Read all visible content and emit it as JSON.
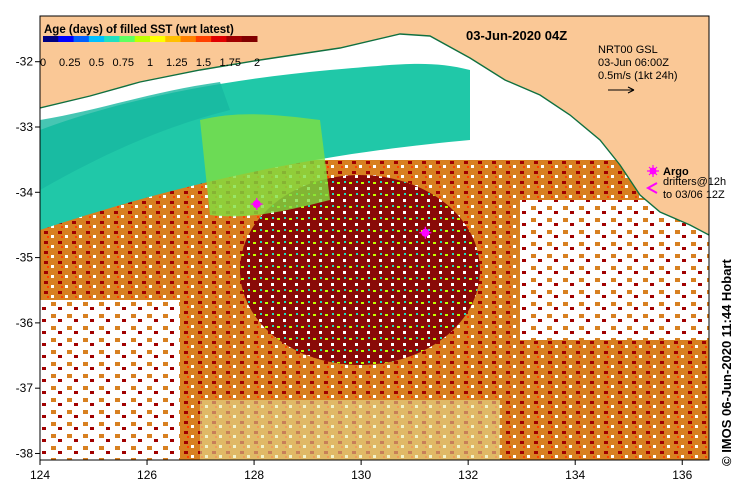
{
  "map": {
    "title": "03-Jun-2020 04Z",
    "colorbar": {
      "title": "Age (days) of filled SST (wrt latest)",
      "ticks": [
        "0",
        "0.25",
        "0.5",
        "0.75",
        "1",
        "1.25",
        "1.5",
        "1.75",
        "2"
      ],
      "colors": [
        "#000080",
        "#0000ff",
        "#0060ff",
        "#00c0ff",
        "#20e0c0",
        "#60ff60",
        "#c0ff00",
        "#ffff00",
        "#ffc000",
        "#ff8000",
        "#ff4000",
        "#e00000",
        "#a00000",
        "#800000"
      ]
    },
    "current_legend": {
      "line1": "NRT00 GSL",
      "line2": "03-Jun 06:00Z",
      "line3": "0.5m/s (1kt 24h)"
    },
    "markers_legend": {
      "argo_label": "Argo",
      "drifters_line1": "drifters@12h",
      "drifters_line2": "to 03/06 12Z"
    },
    "axes": {
      "x_ticks": [
        "124",
        "126",
        "128",
        "130",
        "132",
        "134",
        "136"
      ],
      "y_ticks": [
        "-32",
        "-33",
        "-34",
        "-35",
        "-36",
        "-37",
        "-38"
      ],
      "xlim": [
        124,
        136.5
      ],
      "ylim": [
        -38.1,
        -31.3
      ]
    },
    "argo_floats": [
      {
        "lon": 128.05,
        "lat": -34.18
      },
      {
        "lon": 131.2,
        "lat": -34.62
      }
    ],
    "credit": "© IMOS 06-Jun-2020 11:44 Hobart",
    "colors": {
      "land": "#fac896",
      "shelf": "#20c8a8",
      "deep": "#e08018",
      "argo": "#ff00ff"
    }
  }
}
